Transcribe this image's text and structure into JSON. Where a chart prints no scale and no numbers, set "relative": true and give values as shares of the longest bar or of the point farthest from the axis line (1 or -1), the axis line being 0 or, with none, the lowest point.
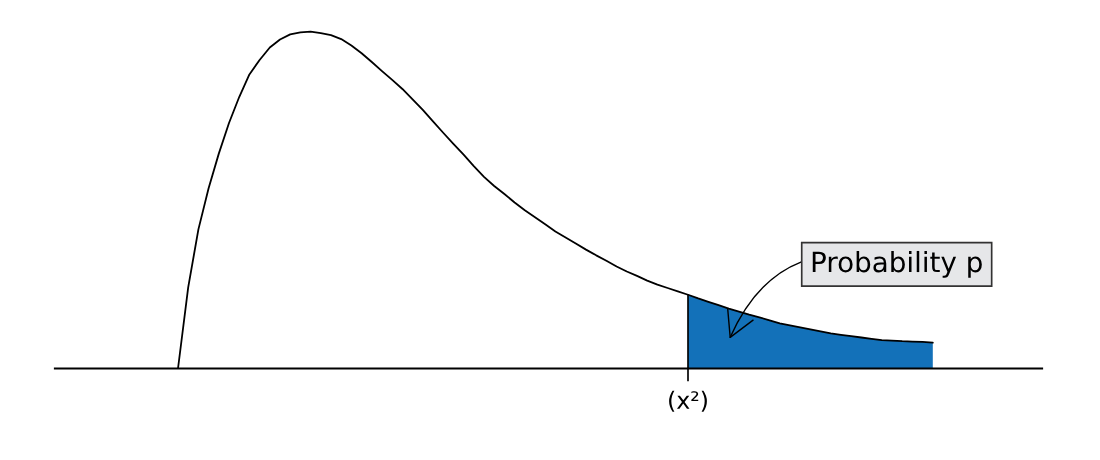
{
  "chart_data": {
    "type": "line",
    "relative": true,
    "categories": [
      null,
      null,
      null,
      null,
      null,
      null,
      null,
      null,
      null,
      null,
      null,
      null,
      null,
      null,
      null,
      null,
      null,
      null,
      null,
      null,
      null,
      null,
      null,
      null,
      null,
      null,
      null,
      null,
      null,
      null,
      null,
      null,
      null,
      null,
      null,
      null,
      null,
      null,
      null,
      null,
      null,
      null,
      null,
      null,
      null,
      null,
      null,
      null,
      null,
      null,
      null,
      null,
      null,
      null,
      null,
      null,
      null,
      null,
      null,
      null,
      null,
      null,
      null,
      null,
      null,
      null,
      null,
      null,
      null,
      null,
      null,
      null,
      null,
      null,
      null
    ],
    "series": [
      {
        "color": "#000000",
        "values": [
          0,
          0.241,
          0.413,
          0.535,
          0.638,
          0.729,
          0.806,
          0.873,
          0.916,
          0.953,
          0.977,
          0.992,
          0.998,
          1.0,
          0.996,
          0.99,
          0.978,
          0.959,
          0.936,
          0.91,
          0.883,
          0.857,
          0.83,
          0.799,
          0.768,
          0.734,
          0.7,
          0.667,
          0.635,
          0.601,
          0.569,
          0.542,
          0.518,
          0.493,
          0.47,
          0.449,
          0.428,
          0.407,
          0.389,
          0.371,
          0.353,
          0.336,
          0.32,
          0.303,
          0.288,
          0.275,
          0.261,
          0.249,
          0.239,
          0.229,
          0.219,
          0.208,
          0.198,
          0.188,
          0.178,
          0.169,
          0.16,
          0.152,
          0.143,
          0.134,
          0.128,
          0.122,
          0.116,
          0.11,
          0.104,
          0.1,
          0.096,
          0.092,
          0.088,
          0.084,
          0.083,
          0.081,
          0.08,
          0.079,
          0.077
        ]
      },
      {
        "type": "area",
        "color": "#1371b9",
        "values": [
          null,
          null,
          null,
          null,
          null,
          null,
          null,
          null,
          null,
          null,
          null,
          null,
          null,
          null,
          null,
          null,
          null,
          null,
          null,
          null,
          null,
          null,
          null,
          null,
          null,
          null,
          null,
          null,
          null,
          null,
          null,
          null,
          null,
          null,
          null,
          null,
          null,
          null,
          null,
          null,
          null,
          null,
          null,
          null,
          null,
          null,
          null,
          null,
          null,
          null,
          0.219,
          0.208,
          0.198,
          0.188,
          0.178,
          0.169,
          0.16,
          0.152,
          0.143,
          0.134,
          0.128,
          0.122,
          0.116,
          0.11,
          0.104,
          0.1,
          0.096,
          0.092,
          0.088,
          0.084,
          0.083,
          0.081,
          0.08,
          0.079,
          0.077
        ]
      }
    ],
    "annotations": [
      "(x²)",
      "Probability p"
    ]
  }
}
